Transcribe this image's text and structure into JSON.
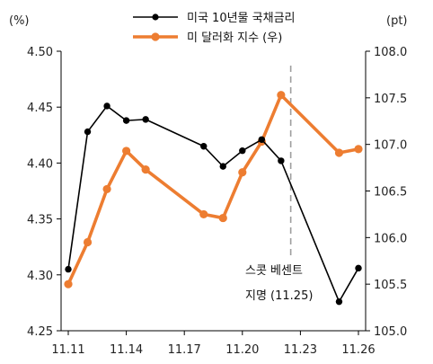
{
  "chart_data": {
    "type": "line",
    "y_left_unit": "(%)",
    "y_right_unit": "(pt)",
    "x_tick_labels": [
      "11.11",
      "11.14",
      "11.17",
      "11.20",
      "11.23",
      "11.26"
    ],
    "y_left_ticks": [
      "4.50",
      "4.45",
      "4.40",
      "4.35",
      "4.30",
      "4.25"
    ],
    "y_right_ticks": [
      "108.0",
      "107.5",
      "107.0",
      "106.5",
      "106.0",
      "105.5",
      "105.0"
    ],
    "y_left_range": [
      4.25,
      4.5
    ],
    "y_right_range": [
      105.0,
      108.0
    ],
    "x_range": [
      11.11,
      11.26
    ],
    "series": [
      {
        "name": "미국 10년물 국채금리",
        "axis": "left",
        "color": "#000000",
        "points": [
          {
            "x": 11.11,
            "y": 4.305
          },
          {
            "x": 11.12,
            "y": 4.428
          },
          {
            "x": 11.13,
            "y": 4.451
          },
          {
            "x": 11.14,
            "y": 4.438
          },
          {
            "x": 11.15,
            "y": 4.439
          },
          {
            "x": 11.18,
            "y": 4.415
          },
          {
            "x": 11.19,
            "y": 4.397
          },
          {
            "x": 11.2,
            "y": 4.411
          },
          {
            "x": 11.21,
            "y": 4.421
          },
          {
            "x": 11.22,
            "y": 4.402
          },
          {
            "x": 11.25,
            "y": 4.276
          },
          {
            "x": 11.26,
            "y": 4.306
          }
        ]
      },
      {
        "name": "미 달러화 지수 (우)",
        "axis": "right",
        "color": "#ED7D31",
        "points": [
          {
            "x": 11.11,
            "y": 105.5
          },
          {
            "x": 11.12,
            "y": 105.95
          },
          {
            "x": 11.13,
            "y": 106.52
          },
          {
            "x": 11.14,
            "y": 106.93
          },
          {
            "x": 11.15,
            "y": 106.73
          },
          {
            "x": 11.18,
            "y": 106.25
          },
          {
            "x": 11.19,
            "y": 106.21
          },
          {
            "x": 11.2,
            "y": 106.7
          },
          {
            "x": 11.21,
            "y": 107.03
          },
          {
            "x": 11.22,
            "y": 107.53
          },
          {
            "x": 11.25,
            "y": 106.91
          },
          {
            "x": 11.26,
            "y": 106.95
          }
        ]
      }
    ],
    "annotation": {
      "x": 11.225,
      "line1": "스콧 베센트",
      "line2": "지명 (11.25)"
    },
    "grid": false,
    "legend_position": "top-center"
  }
}
